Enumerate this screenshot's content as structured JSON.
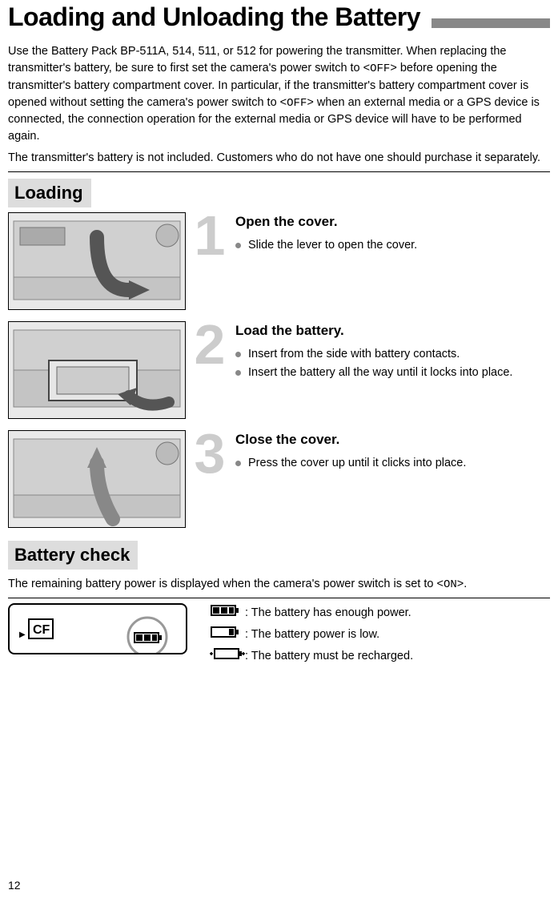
{
  "page": {
    "title": "Loading and Unloading the Battery",
    "intro_html": "Use the Battery Pack BP-511A, 514, 511, or 512 for powering the transmitter. When replacing the transmitter's battery, be sure to first set the camera's power switch to &lt;<span class=\"mono\">OFF</span>&gt; before opening the transmitter's battery compartment cover. In particular, if the transmitter's battery compartment cover is opened without setting the camera's power switch to &lt;<span class=\"mono\">OFF</span>&gt; when an external media or a GPS device is connected, the connection operation for the external media or GPS device will have to be performed again.",
    "intro2": "The transmitter's battery is not included. Customers who do not have one should purchase it separately.",
    "page_number": "12"
  },
  "section_loading": {
    "label": "Loading",
    "steps": [
      {
        "num": "1",
        "title": "Open the cover.",
        "bullets": [
          "Slide the lever to open the cover."
        ]
      },
      {
        "num": "2",
        "title": "Load the battery.",
        "bullets": [
          "Insert from the side with battery contacts.",
          "Insert the battery all the way until it locks into place."
        ]
      },
      {
        "num": "3",
        "title": "Close the cover.",
        "bullets": [
          "Press the cover up until it clicks into place."
        ]
      }
    ]
  },
  "section_battery_check": {
    "label": "Battery check",
    "intro_html": "The remaining battery power is displayed when the camera's power switch is set to &lt;<span class=\"mono\">ON</span>&gt;.",
    "lcd_label": "CF",
    "statuses": [
      {
        "icon": "full",
        "text": ": The battery has enough power."
      },
      {
        "icon": "low",
        "text": ": The battery power is low."
      },
      {
        "icon": "empty",
        "text": ": The battery must be recharged."
      }
    ]
  },
  "colors": {
    "step_number": "#cccccc",
    "section_label_bg": "#dddddd",
    "title_bar": "#888888",
    "bullet": "#888888"
  }
}
